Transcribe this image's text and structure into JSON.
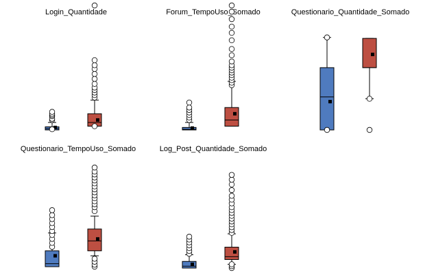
{
  "colors": {
    "series_a": "#4f7bbf",
    "series_b": "#bd4f42",
    "stroke": "#000000",
    "outlier_fill": "#ffffff"
  },
  "chart_data": [
    {
      "type": "boxplot",
      "title": "Login_Quantidade",
      "xlabel": "",
      "ylabel": "",
      "grid": false,
      "ylim": [
        0,
        1
      ],
      "boxes": [
        {
          "whisker_low": 0.0,
          "q1": 0.0,
          "median": 0.01,
          "q3": 0.025,
          "whisker_high": 0.06,
          "mean": 0.02,
          "outliers": [
            0.005,
            0.08,
            0.09,
            0.11,
            0.12,
            0.13,
            0.145
          ]
        },
        {
          "whisker_low": 0.03,
          "q1": 0.03,
          "median": 0.06,
          "q3": 0.13,
          "whisker_high": 0.24,
          "mean": 0.08,
          "outliers": [
            0.03,
            0.26,
            0.28,
            0.3,
            0.32,
            0.34,
            0.37,
            0.41,
            0.45,
            0.49,
            0.52,
            0.56,
            1.0
          ]
        }
      ]
    },
    {
      "type": "boxplot",
      "title": "Forum_TempoUso_Somado",
      "xlabel": "",
      "ylabel": "",
      "grid": false,
      "ylim": [
        0,
        1
      ],
      "boxes": [
        {
          "whisker_low": 0.0,
          "q1": 0.0,
          "median": 0.005,
          "q3": 0.02,
          "whisker_high": 0.06,
          "mean": 0.015,
          "outliers": [
            0.08,
            0.1,
            0.12,
            0.14,
            0.16,
            0.18,
            0.22
          ]
        },
        {
          "whisker_low": 0.03,
          "q1": 0.03,
          "median": 0.08,
          "q3": 0.18,
          "whisker_high": 0.39,
          "mean": 0.13,
          "outliers": [
            0.36,
            0.38,
            0.4,
            0.42,
            0.44,
            0.46,
            0.48,
            0.5,
            0.52,
            0.55,
            0.6,
            0.65,
            0.72,
            0.78,
            0.83,
            0.89,
            0.95,
            1.0
          ]
        }
      ]
    },
    {
      "type": "boxplot",
      "title": "Questionario_Quantidade_Somado",
      "xlabel": "",
      "ylabel": "",
      "grid": false,
      "ylim": [
        0,
        1
      ],
      "boxes": [
        {
          "whisker_low": 0.0,
          "q1": 0.0,
          "median": 0.35,
          "q3": 0.66,
          "whisker_high": 0.98,
          "mean": 0.3,
          "outliers": [
            0.0,
            0.98
          ]
        },
        {
          "whisker_low": 0.33,
          "q1": 0.66,
          "median": 0.66,
          "q3": 0.97,
          "whisker_high": 0.97,
          "mean": 0.8,
          "outliers": [
            0.0,
            0.33
          ]
        }
      ]
    },
    {
      "type": "boxplot",
      "title": "Questionario_TempoUso_Somado",
      "xlabel": "",
      "ylabel": "",
      "grid": false,
      "ylim": [
        0,
        1
      ],
      "boxes": [
        {
          "whisker_low": 0.0,
          "q1": 0.0,
          "median": 0.03,
          "q3": 0.16,
          "whisker_high": 0.34,
          "mean": 0.11,
          "outliers": [
            0.2,
            0.24,
            0.28,
            0.32,
            0.36,
            0.4,
            0.44,
            0.48,
            0.52,
            0.57
          ]
        },
        {
          "whisker_low": 0.11,
          "q1": 0.16,
          "median": 0.26,
          "q3": 0.38,
          "whisker_high": 0.51,
          "mean": 0.28,
          "outliers": [
            0.0,
            0.02,
            0.05,
            0.08,
            0.56,
            0.6,
            0.63,
            0.66,
            0.69,
            0.72,
            0.75,
            0.78,
            0.81,
            0.84,
            0.87,
            0.9,
            0.93,
            0.96,
            1.0
          ]
        }
      ]
    },
    {
      "type": "boxplot",
      "title": "Log_Post_Quantidade_Somado",
      "xlabel": "",
      "ylabel": "",
      "grid": false,
      "ylim": [
        0,
        1
      ],
      "boxes": [
        {
          "whisker_low": 0.0,
          "q1": 0.0,
          "median": 0.02,
          "q3": 0.07,
          "whisker_high": 0.14,
          "mean": 0.04,
          "outliers": [
            0.15,
            0.18,
            0.21,
            0.24,
            0.27,
            0.3,
            0.33
          ]
        },
        {
          "whisker_low": 0.04,
          "q1": 0.09,
          "median": 0.12,
          "q3": 0.22,
          "whisker_high": 0.36,
          "mean": 0.17,
          "outliers": [
            0.0,
            0.02,
            0.04,
            0.37,
            0.4,
            0.43,
            0.46,
            0.49,
            0.52,
            0.55,
            0.58,
            0.61,
            0.64,
            0.68,
            0.72,
            0.76,
            0.82,
            0.88,
            0.93,
            0.98
          ]
        }
      ]
    }
  ]
}
